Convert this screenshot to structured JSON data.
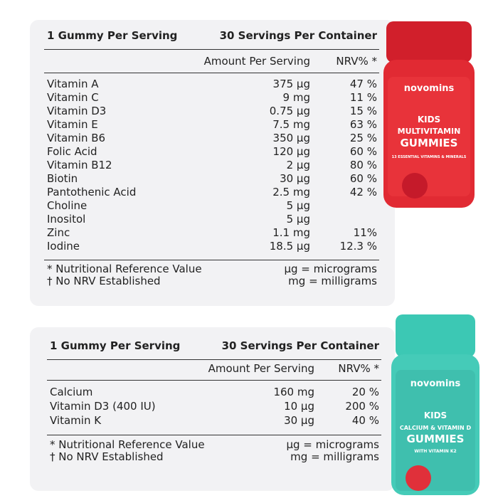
{
  "panels": [
    {
      "header_left": "1 Gummy Per Serving",
      "header_right": "30 Servings Per Container",
      "col_amount": "Amount Per Serving",
      "col_nrv": "NRV% *",
      "rows": [
        {
          "name": "Vitamin A",
          "amount": "375 µg",
          "nrv": "47 %"
        },
        {
          "name": "Vitamin C",
          "amount": "9 mg",
          "nrv": "11 %"
        },
        {
          "name": "Vitamin D3",
          "amount": "0.75 µg",
          "nrv": "15 %"
        },
        {
          "name": "Vitamin E",
          "amount": "7.5 mg",
          "nrv": "63 %"
        },
        {
          "name": "Vitamin B6",
          "amount": "350 µg",
          "nrv": "25 %"
        },
        {
          "name": "Folic Acid",
          "amount": "120 µg",
          "nrv": "60 %"
        },
        {
          "name": "Vitamin B12",
          "amount": "2 µg",
          "nrv": "80 %"
        },
        {
          "name": "Biotin",
          "amount": "30 µg",
          "nrv": "60 %"
        },
        {
          "name": "Pantothenic Acid",
          "amount": "2.5 mg",
          "nrv": "42 %"
        },
        {
          "name": "Choline",
          "amount": "5 µg"
        },
        {
          "name": "Inositol",
          "amount": "5 µg"
        },
        {
          "name": "Zinc",
          "amount": "1.1 mg",
          "nrv": "11%"
        },
        {
          "name": "Iodine",
          "amount": "18.5 µg",
          "nrv": "12.3 %"
        }
      ],
      "footnotes_left": [
        "* Nutritional Reference Value",
        "† No NRV Established"
      ],
      "footnotes_right": [
        "µg = micrograms",
        "mg = milligrams"
      ]
    },
    {
      "header_left": "1 Gummy Per Serving",
      "header_right": "30 Servings Per Container",
      "col_amount": "Amount Per Serving",
      "col_nrv": "NRV% *",
      "rows": [
        {
          "name": "Calcium",
          "amount": "160 mg",
          "nrv": "20 %"
        },
        {
          "name": "Vitamin D3 (400 IU)",
          "amount": "10 µg",
          "nrv": "200 %"
        },
        {
          "name": "Vitamin K",
          "amount": "30 µg",
          "nrv": "40 %"
        }
      ],
      "footnotes_left": [
        "* Nutritional Reference Value",
        "† No NRV Established"
      ],
      "footnotes_right": [
        "µg = micrograms",
        "mg = milligrams"
      ]
    }
  ],
  "products": [
    {
      "brand": "novomins",
      "line1": "KIDS",
      "line2": "MULTIVITAMIN",
      "line3": "GUMMIES",
      "tagline": "13 ESSENTIAL VITAMINS & MINERALS"
    },
    {
      "brand": "novomins",
      "line1": "KIDS",
      "line2": "CALCIUM & VITAMIN D",
      "line3": "GUMMIES",
      "tagline": "WITH VITAMIN K2"
    }
  ]
}
